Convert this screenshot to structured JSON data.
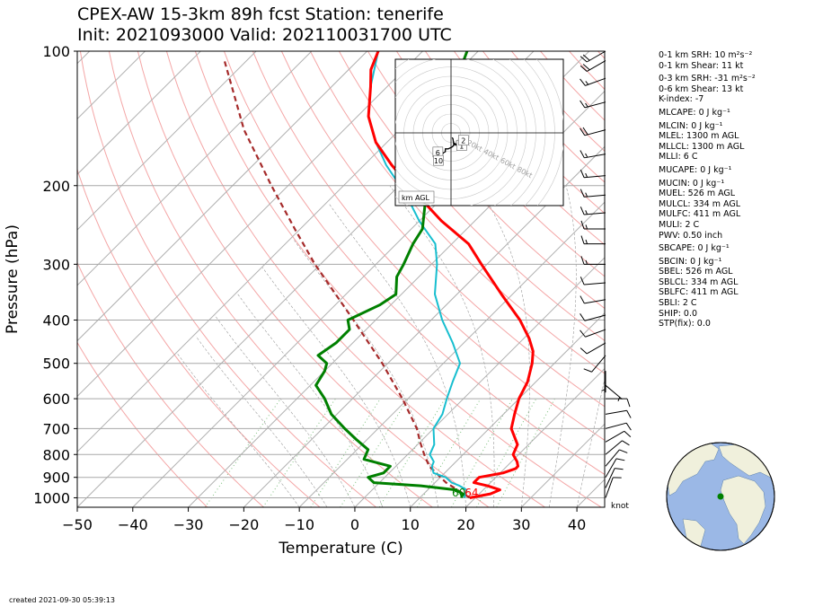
{
  "title_line1": "CPEX-AW 15-3km  89h fcst  Station: tenerife",
  "title_line2": "Init: 2021093000  Valid: 202110031700 UTC",
  "created": "created 2021-09-30 05:39:13",
  "knot_label": "knot",
  "colors": {
    "temperature": "#ff0000",
    "dewpoint": "#008000",
    "wetbulb": "#17becf",
    "parcel": "#a52a2a",
    "dry_adiabat": "#f4a6a6",
    "moist_adiabat": "#9a9a9a",
    "mixing_ratio": "#7fbf7f",
    "isotherm": "#b0b0b0",
    "ocean": "#9bb8e6",
    "land": "#f0f0dc"
  },
  "side_panel": [
    "0-1 km SRH: 10 m²s⁻²",
    "0-1 km Shear: 11 kt",
    "0-3 km SRH: -31 m²s⁻²",
    "0-6 km Shear: 13 kt",
    "K-index: -7",
    "MLCAPE: 0 J kg⁻¹",
    "MLCIN: 0 J kg⁻¹",
    "MLEL: 1300 m AGL",
    "MLLCL: 1300 m AGL",
    "MLLI: 6 C",
    "MUCAPE: 0 J kg⁻¹",
    "MUCIN: 0 J kg⁻¹",
    "MUEL: 526 m AGL",
    "MULCL: 334 m AGL",
    "MULFC: 411 m AGL",
    "MULI: 2 C",
    "PWV: 0.50 inch",
    "SBCAPE: 0 J kg⁻¹",
    "SBCIN: 0 J kg⁻¹",
    "SBEL: 526 m AGL",
    "SBLCL: 334 m AGL",
    "SBLFC: 411 m AGL",
    "SBLI: 2 C",
    "SHIP: 0.0",
    "STP(fix): 0.0"
  ],
  "chart_data": [
    {
      "type": "line",
      "subtype": "skew-T log-P",
      "xlabel": "Temperature (C)",
      "ylabel": "Pressure (hPa)",
      "xlim": [
        -50,
        45
      ],
      "ylim": [
        1050,
        100
      ],
      "y_scale": "log",
      "x_ticks": [
        "−50",
        "−40",
        "−30",
        "−20",
        "−10",
        "0",
        "10",
        "20",
        "30",
        "40"
      ],
      "y_ticks": [
        100,
        200,
        300,
        400,
        500,
        600,
        700,
        800,
        900,
        1000
      ],
      "surface_labels": {
        "dewpoint": "60",
        "temperature": "64"
      },
      "series": [
        {
          "name": "temperature",
          "points": [
            [
              1000,
              19
            ],
            [
              980,
              22
            ],
            [
              960,
              23
            ],
            [
              940,
              20
            ],
            [
              925,
              17
            ],
            [
              900,
              17
            ],
            [
              880,
              20.5
            ],
            [
              860,
              22
            ],
            [
              850,
              22
            ],
            [
              830,
              21
            ],
            [
              800,
              19
            ],
            [
              760,
              18
            ],
            [
              700,
              14
            ],
            [
              650,
              12
            ],
            [
              600,
              10
            ],
            [
              550,
              8.5
            ],
            [
              500,
              6
            ],
            [
              470,
              4
            ],
            [
              440,
              1
            ],
            [
              400,
              -4
            ],
            [
              350,
              -12
            ],
            [
              300,
              -21
            ],
            [
              270,
              -27
            ],
            [
              240,
              -36
            ],
            [
              210,
              -45
            ],
            [
              180,
              -55
            ],
            [
              160,
              -62
            ],
            [
              140,
              -68
            ],
            [
              120,
              -73
            ],
            [
              110,
              -76
            ],
            [
              100,
              -78
            ]
          ]
        },
        {
          "name": "dewpoint",
          "points": [
            [
              1000,
              17.5
            ],
            [
              980,
              17
            ],
            [
              960,
              15
            ],
            [
              940,
              8
            ],
            [
              925,
              -1
            ],
            [
              900,
              -3
            ],
            [
              880,
              -1
            ],
            [
              850,
              -1
            ],
            [
              820,
              -7
            ],
            [
              780,
              -8
            ],
            [
              740,
              -12
            ],
            [
              700,
              -16
            ],
            [
              650,
              -21
            ],
            [
              600,
              -25
            ],
            [
              560,
              -29
            ],
            [
              520,
              -30
            ],
            [
              500,
              -31
            ],
            [
              480,
              -34
            ],
            [
              450,
              -33
            ],
            [
              420,
              -33
            ],
            [
              400,
              -35
            ],
            [
              370,
              -32
            ],
            [
              350,
              -31
            ],
            [
              320,
              -34
            ],
            [
              300,
              -35
            ],
            [
              270,
              -37
            ],
            [
              250,
              -38
            ],
            [
              220,
              -42
            ],
            [
              200,
              -43
            ],
            [
              180,
              -46
            ],
            [
              160,
              -50
            ],
            [
              140,
              -54
            ],
            [
              120,
              -58
            ],
            [
              100,
              -62
            ]
          ]
        },
        {
          "name": "wetbulb",
          "points": [
            [
              1000,
              18
            ],
            [
              980,
              17.5
            ],
            [
              960,
              17
            ],
            [
              940,
              15
            ],
            [
              925,
              13
            ],
            [
              900,
              11
            ],
            [
              880,
              8
            ],
            [
              850,
              6.5
            ],
            [
              830,
              6
            ],
            [
              800,
              4
            ],
            [
              760,
              3
            ],
            [
              700,
              0
            ],
            [
              650,
              -1
            ],
            [
              600,
              -3
            ],
            [
              550,
              -5
            ],
            [
              500,
              -7
            ],
            [
              450,
              -12
            ],
            [
              400,
              -18
            ],
            [
              350,
              -24
            ],
            [
              300,
              -29
            ],
            [
              270,
              -33
            ],
            [
              240,
              -40
            ],
            [
              210,
              -47
            ],
            [
              180,
              -56
            ],
            [
              160,
              -62
            ],
            [
              140,
              -68
            ],
            [
              120,
              -73
            ],
            [
              100,
              -78
            ]
          ]
        },
        {
          "name": "parcel",
          "points": [
            [
              1000,
              19
            ],
            [
              925,
              12
            ],
            [
              850,
              6
            ],
            [
              800,
              3
            ],
            [
              750,
              0
            ],
            [
              700,
              -3
            ],
            [
              600,
              -11
            ],
            [
              500,
              -21
            ],
            [
              400,
              -34
            ],
            [
              300,
              -51
            ],
            [
              250,
              -61
            ],
            [
              200,
              -73
            ],
            [
              150,
              -88
            ],
            [
              120,
              -98
            ],
            [
              105,
              -104
            ]
          ]
        }
      ],
      "wind_barbs_kt": [
        {
          "p": 1000,
          "spd": 11,
          "dir": 20
        },
        {
          "p": 950,
          "spd": 12,
          "dir": 25
        },
        {
          "p": 900,
          "spd": 10,
          "dir": 30
        },
        {
          "p": 850,
          "spd": 10,
          "dir": 40
        },
        {
          "p": 800,
          "spd": 10,
          "dir": 50
        },
        {
          "p": 750,
          "spd": 11,
          "dir": 60
        },
        {
          "p": 700,
          "spd": 12,
          "dir": 75
        },
        {
          "p": 650,
          "spd": 12,
          "dir": 80
        },
        {
          "p": 600,
          "spd": 10,
          "dir": 90
        },
        {
          "p": 560,
          "spd": 5,
          "dir": 130
        },
        {
          "p": 520,
          "spd": 5,
          "dir": 180
        },
        {
          "p": 480,
          "spd": 10,
          "dir": 220
        },
        {
          "p": 450,
          "spd": 10,
          "dir": 240
        },
        {
          "p": 420,
          "spd": 12,
          "dir": 250
        },
        {
          "p": 390,
          "spd": 12,
          "dir": 255
        },
        {
          "p": 360,
          "spd": 10,
          "dir": 260
        },
        {
          "p": 330,
          "spd": 12,
          "dir": 265
        },
        {
          "p": 300,
          "spd": 15,
          "dir": 270
        },
        {
          "p": 270,
          "spd": 15,
          "dir": 270
        },
        {
          "p": 250,
          "spd": 15,
          "dir": 270
        },
        {
          "p": 230,
          "spd": 15,
          "dir": 265
        },
        {
          "p": 210,
          "spd": 15,
          "dir": 265
        },
        {
          "p": 190,
          "spd": 15,
          "dir": 265
        },
        {
          "p": 170,
          "spd": 15,
          "dir": 260
        },
        {
          "p": 150,
          "spd": 20,
          "dir": 255
        },
        {
          "p": 130,
          "spd": 15,
          "dir": 255
        },
        {
          "p": 115,
          "spd": 15,
          "dir": 250
        },
        {
          "p": 105,
          "spd": 20,
          "dir": 240
        },
        {
          "p": 100,
          "spd": 20,
          "dir": 240
        }
      ]
    },
    {
      "type": "scatter",
      "subtype": "hodograph",
      "ring_labels": [
        "20kt",
        "40kt",
        "60kt",
        "80kt"
      ],
      "units": "kt",
      "height_labels": [
        "1",
        "2",
        "6",
        "10"
      ],
      "legend": "km AGL",
      "points": [
        [
          1,
          -5
        ],
        [
          2,
          -6
        ],
        [
          3,
          -13
        ],
        [
          4,
          -11
        ],
        [
          5,
          -13
        ],
        [
          7,
          -12
        ],
        [
          8,
          -11
        ],
        [
          9,
          -11
        ],
        [
          7,
          -11
        ],
        [
          5,
          -12
        ],
        [
          4,
          -12
        ],
        [
          3,
          -13
        ],
        [
          2,
          -14
        ],
        [
          1,
          -15
        ],
        [
          -1,
          -16
        ],
        [
          -3,
          -17
        ],
        [
          -6,
          -17
        ],
        [
          -6,
          -20
        ],
        [
          -8,
          -21
        ],
        [
          -10,
          -24
        ],
        [
          -9,
          -24
        ]
      ]
    }
  ],
  "map": {
    "station_marker_color": "#008000"
  }
}
